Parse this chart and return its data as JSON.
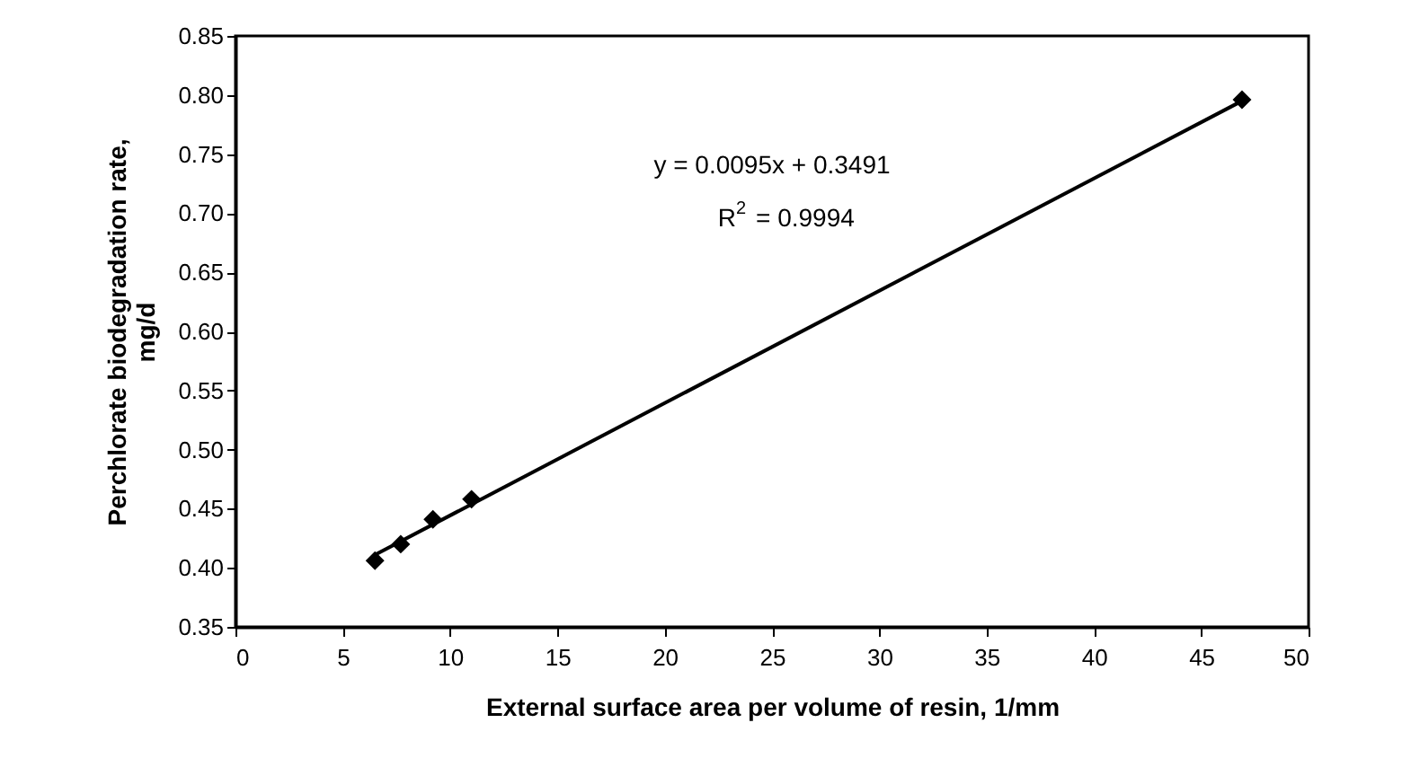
{
  "chart_data": {
    "type": "scatter",
    "xlabel": "External surface area per volume of resin, 1/mm",
    "ylabel": "Perchlorate biodegradation rate, mg/d",
    "series": [
      {
        "type": "scatter",
        "color": "#000000",
        "marker": "diamond",
        "x": [
          6.5,
          7.7,
          9.2,
          11.0,
          46.9
        ],
        "values": [
          0.406,
          0.42,
          0.441,
          0.458,
          0.796
        ]
      },
      {
        "type": "line",
        "color": "#000000",
        "x": [
          6.5,
          46.9
        ],
        "values": [
          0.411,
          0.795
        ]
      }
    ],
    "annotations": [
      "y = 0.0095x + 0.3491",
      "R$^{2}$ = 0.9994"
    ],
    "xlim": [
      0,
      50
    ],
    "xticks": [
      0,
      5,
      10,
      15,
      20,
      25,
      30,
      35,
      40,
      45,
      50
    ],
    "ylim": [
      0.35,
      0.85
    ],
    "yticks": [
      {
        "value": 0.35,
        "label": "0.35"
      },
      {
        "value": 0.4,
        "label": "0.40"
      },
      {
        "value": 0.45,
        "label": "0.45"
      },
      {
        "value": 0.5,
        "label": "0.50"
      },
      {
        "value": 0.55,
        "label": "0.55"
      },
      {
        "value": 0.6,
        "label": "0.60"
      },
      {
        "value": 0.65,
        "label": "0.65"
      },
      {
        "value": 0.7,
        "label": "0.70"
      },
      {
        "value": 0.75,
        "label": "0.75"
      },
      {
        "value": 0.8,
        "label": "0.80"
      },
      {
        "value": 0.85,
        "label": "0.85"
      }
    ],
    "grid": false
  }
}
